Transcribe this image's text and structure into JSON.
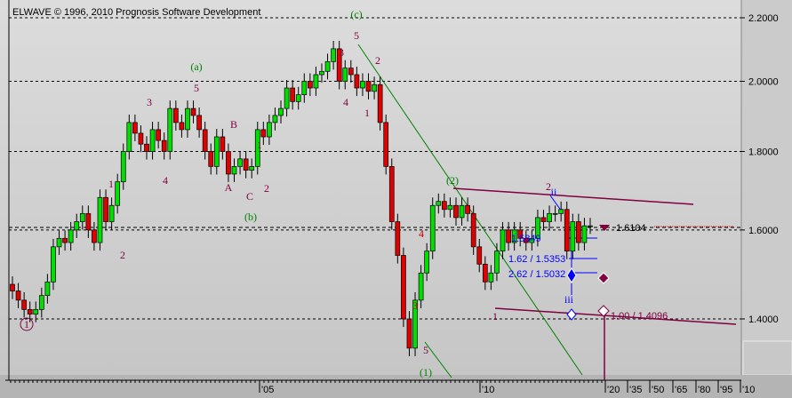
{
  "header": {
    "copyright": "ELWAVE © 1996, 2010 Prognosis Software Development"
  },
  "colors": {
    "up": "#00e000",
    "down": "#e00000",
    "wave_purple": "#800040",
    "wave_green": "#008000",
    "fib_blue": "#0000ff",
    "bg": "#d2d2d2"
  },
  "chart_data": {
    "type": "candlestick",
    "title": "",
    "y_scale": "log",
    "ylim": [
      1.33,
      2.23
    ],
    "y_ticks": [
      "2.2000",
      "2.0000",
      "1.8000",
      "1.6000",
      "1.4000"
    ],
    "y_tick_values": [
      2.2,
      2.0,
      1.8,
      1.6,
      1.4
    ],
    "x_ticks": [
      "'05",
      "'10",
      "'20",
      "'35",
      "'50",
      "'65",
      "'80",
      "'95",
      "'10"
    ],
    "grid": "horizontal-dashed",
    "closes": [
      1.46,
      1.44,
      1.42,
      1.41,
      1.42,
      1.45,
      1.48,
      1.56,
      1.58,
      1.57,
      1.6,
      1.62,
      1.64,
      1.6,
      1.57,
      1.68,
      1.62,
      1.66,
      1.72,
      1.8,
      1.88,
      1.85,
      1.82,
      1.8,
      1.86,
      1.83,
      1.8,
      1.92,
      1.88,
      1.86,
      1.92,
      1.9,
      1.86,
      1.8,
      1.76,
      1.84,
      1.8,
      1.74,
      1.76,
      1.78,
      1.75,
      1.76,
      1.86,
      1.84,
      1.88,
      1.9,
      1.92,
      1.98,
      1.94,
      1.96,
      2.0,
      1.98,
      2.02,
      2.03,
      2.06,
      2.1,
      2.0,
      2.04,
      2.02,
      1.98,
      2.0,
      1.97,
      1.99,
      1.88,
      1.76,
      1.62,
      1.54,
      1.4,
      1.34,
      1.44,
      1.5,
      1.55,
      1.66,
      1.67,
      1.65,
      1.66,
      1.63,
      1.66,
      1.64,
      1.56,
      1.52,
      1.48,
      1.5,
      1.55,
      1.6,
      1.57,
      1.6,
      1.58,
      1.57,
      1.58,
      1.63,
      1.62,
      1.64,
      1.64,
      1.65,
      1.55,
      1.62,
      1.57,
      1.61,
      1.61
    ],
    "current_price": "1.6104",
    "fib_targets": [
      "1.5849",
      "1.62 / 1.5353",
      "2.62 / 1.5032",
      "1.00 / 1.4096"
    ],
    "wave_labels": [
      {
        "text": "(c)",
        "c": "green"
      },
      {
        "text": "(a)",
        "c": "green"
      },
      {
        "text": "(b)",
        "c": "green"
      },
      {
        "text": "(2)",
        "c": "green"
      },
      {
        "text": "(1)",
        "c": "green"
      },
      {
        "text": "1",
        "c": "purple"
      },
      {
        "text": "5",
        "c": "purple"
      },
      {
        "text": "3",
        "c": "purple"
      },
      {
        "text": "4",
        "c": "purple"
      },
      {
        "text": "1",
        "c": "purple"
      },
      {
        "text": "2",
        "c": "purple"
      },
      {
        "text": "B",
        "c": "purple"
      },
      {
        "text": "A",
        "c": "purple"
      },
      {
        "text": "C",
        "c": "purple"
      },
      {
        "text": "1",
        "c": "purple"
      },
      {
        "text": "2",
        "c": "purple"
      },
      {
        "text": "3",
        "c": "purple"
      },
      {
        "text": "5",
        "c": "purple"
      },
      {
        "text": "2",
        "c": "purple"
      },
      {
        "text": "4",
        "c": "purple"
      },
      {
        "text": "1",
        "c": "purple"
      },
      {
        "text": "4",
        "c": "red"
      },
      {
        "text": "3",
        "c": "red"
      },
      {
        "text": "5",
        "c": "purple"
      },
      {
        "text": "1",
        "c": "purple"
      },
      {
        "text": "2",
        "c": "purple"
      },
      {
        "text": "ii",
        "c": "blue"
      },
      {
        "text": "iii",
        "c": "blue"
      }
    ]
  }
}
